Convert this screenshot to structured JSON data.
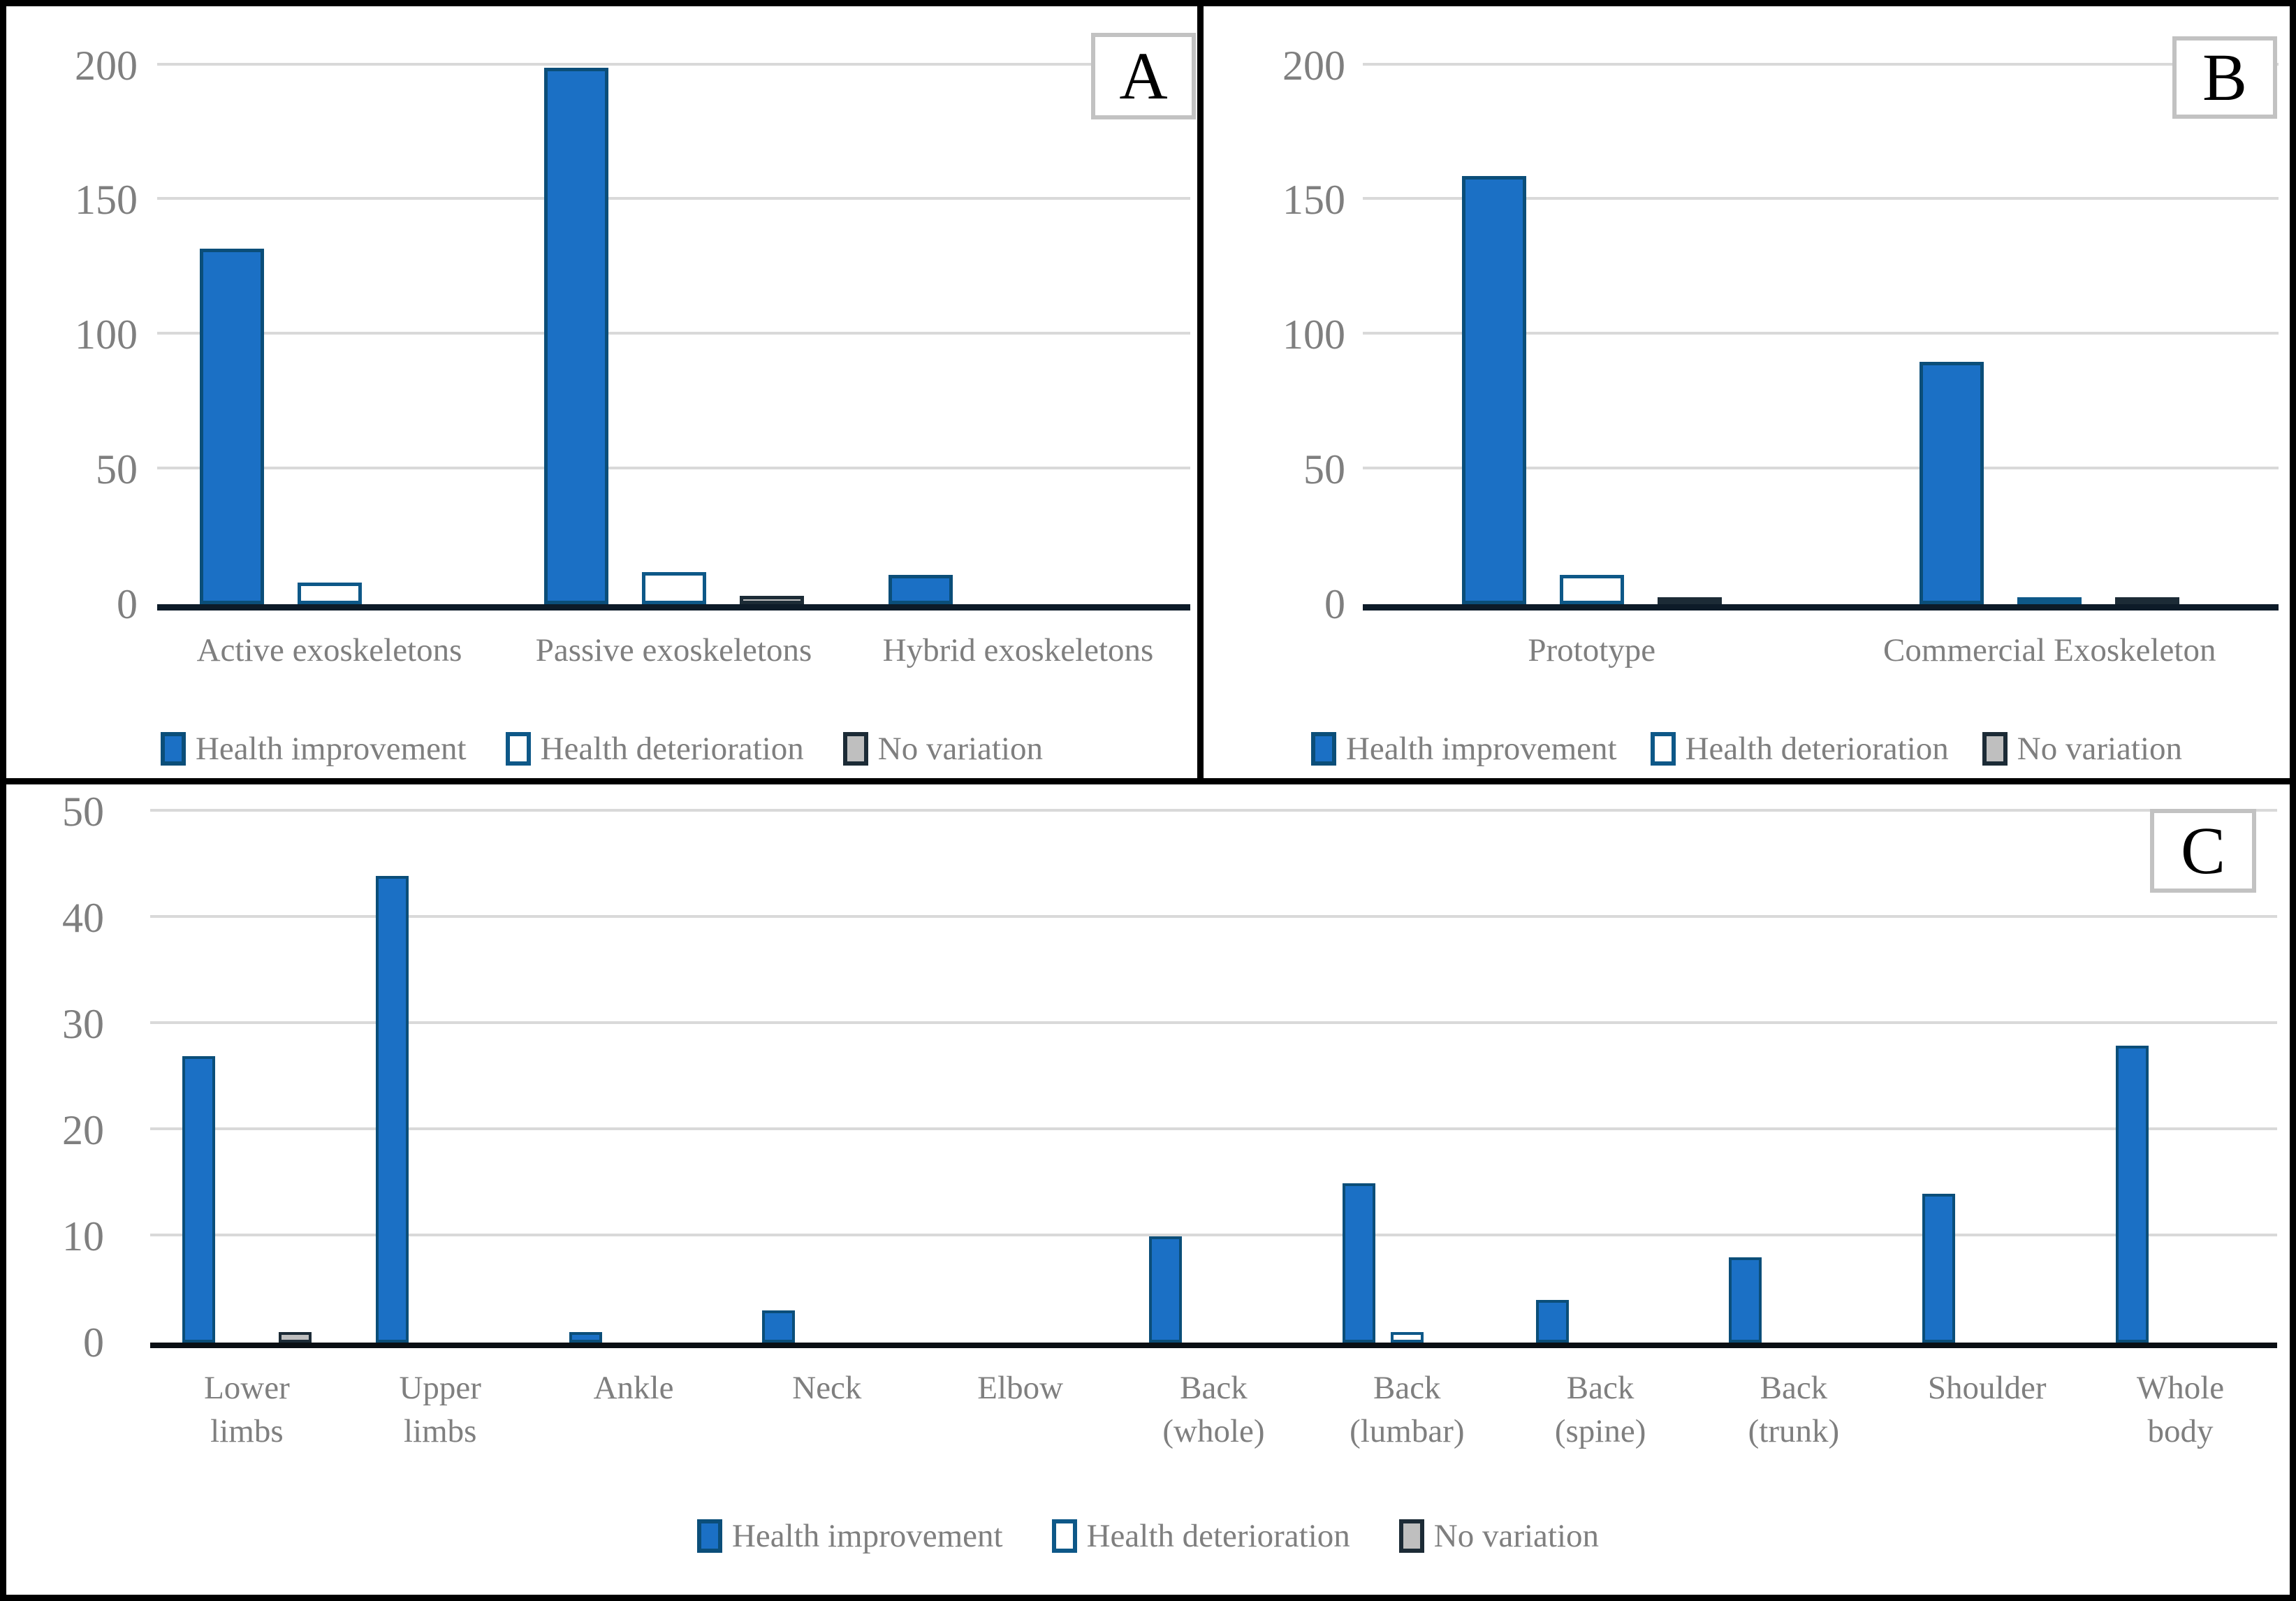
{
  "colors": {
    "improvement_fill": "#1B70C5",
    "improvement_border": "#0B4E79",
    "deterioration_fill": "#FFFFFF",
    "deterioration_border": "#0E5888",
    "novariation_fill": "#BFBFBF",
    "novariation_border": "#1C2B36",
    "gridline": "#D9D9D9",
    "axis_ab": "#0D1B28",
    "axis_c": "#0A0F14",
    "label_text": "#7F7F7F",
    "panel_letter": "#000000",
    "letter_box_border": "#C2C2C2",
    "figure_border": "#000000"
  },
  "chart_data": [
    {
      "id": "A",
      "type": "bar",
      "panel_label": "A",
      "categories": [
        "Active exoskeletons",
        "Passive exoskeletons",
        "Hybrid exoskeletons"
      ],
      "series": [
        {
          "name": "Health improvement",
          "key": "improvement",
          "values": [
            132,
            199,
            11
          ]
        },
        {
          "name": "Health deterioration",
          "key": "deterioration",
          "values": [
            8,
            12,
            0
          ]
        },
        {
          "name": "No variation",
          "key": "novariation",
          "values": [
            0,
            3,
            0
          ]
        }
      ],
      "ylim": [
        0,
        200
      ],
      "yticks": [
        0,
        50,
        100,
        150,
        200
      ],
      "grid": true,
      "legend_position": "bottom"
    },
    {
      "id": "B",
      "type": "bar",
      "panel_label": "B",
      "categories": [
        "Prototype",
        "Commercial Exoskeleton"
      ],
      "series": [
        {
          "name": "Health improvement",
          "key": "improvement",
          "values": [
            159,
            90
          ]
        },
        {
          "name": "Health deterioration",
          "key": "deterioration",
          "values": [
            11,
            1
          ]
        },
        {
          "name": "No variation",
          "key": "novariation",
          "values": [
            2,
            1
          ]
        }
      ],
      "ylim": [
        0,
        200
      ],
      "yticks": [
        0,
        50,
        100,
        150,
        200
      ],
      "grid": true,
      "legend_position": "bottom"
    },
    {
      "id": "C",
      "type": "bar",
      "panel_label": "C",
      "categories": [
        "Lower\nlimbs",
        "Upper\nlimbs",
        "Ankle",
        "Neck",
        "Elbow",
        "Back\n(whole)",
        "Back\n(lumbar)",
        "Back\n(spine)",
        "Back\n(trunk)",
        "Shoulder",
        "Whole\nbody"
      ],
      "series": [
        {
          "name": "Health improvement",
          "key": "improvement",
          "values": [
            27,
            44,
            1,
            3,
            0,
            10,
            15,
            4,
            8,
            14,
            28
          ]
        },
        {
          "name": "Health deterioration",
          "key": "deterioration",
          "values": [
            0,
            0,
            0,
            0,
            0,
            0,
            1,
            0,
            0,
            0,
            0
          ]
        },
        {
          "name": "No variation",
          "key": "novariation",
          "values": [
            1,
            0,
            0,
            0,
            0,
            0,
            0,
            0,
            0,
            0,
            0
          ]
        }
      ],
      "ylim": [
        0,
        50
      ],
      "yticks": [
        0,
        10,
        20,
        30,
        40,
        50
      ],
      "grid": true,
      "legend_position": "bottom"
    }
  ]
}
